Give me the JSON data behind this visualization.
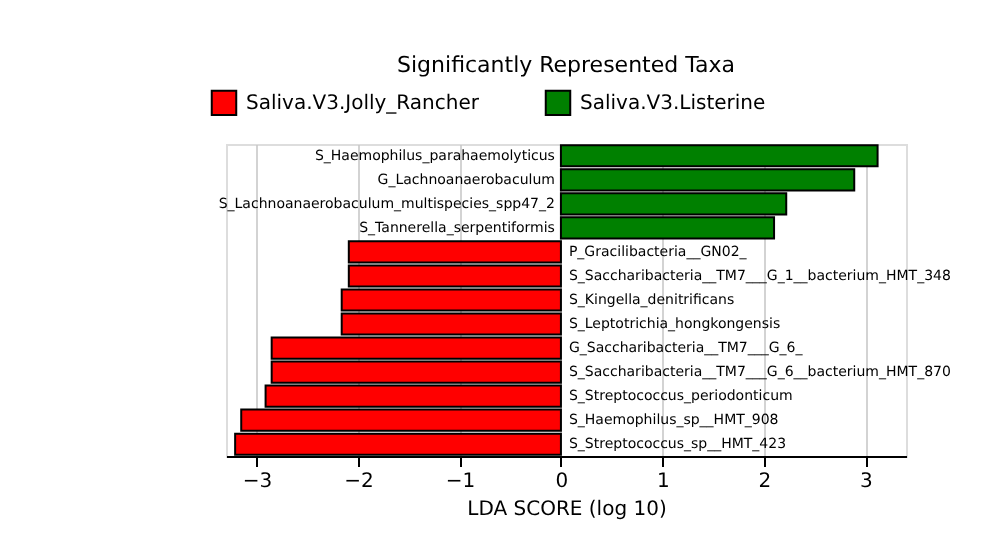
{
  "chart_data": {
    "type": "bar",
    "orientation": "horizontal",
    "title": "Significantly Represented Taxa",
    "xlabel": "LDA SCORE (log 10)",
    "categories": [
      "S_Haemophilus_parahaemolyticus",
      "G_Lachnoanaerobaculum",
      "S_Lachnoanaerobaculum_multispecies_spp47_2",
      "S_Tannerella_serpentiformis",
      "P_Gracilibacteria__GN02_",
      "S_Saccharibacteria__TM7___G_1__bacterium_HMT_348",
      "S_Kingella_denitrificans",
      "S_Leptotrichia_hongkongensis",
      "G_Saccharibacteria__TM7___G_6_",
      "S_Saccharibacteria__TM7___G_6__bacterium_HMT_870",
      "S_Streptococcus_periodonticum",
      "S_Haemophilus_sp__HMT_908",
      "S_Streptococcus_sp__HMT_423"
    ],
    "series": [
      {
        "name": "Saliva.V3.Jolly_Rancher",
        "color": "#ff0000",
        "values": [
          null,
          null,
          null,
          null,
          -2.09,
          -2.09,
          -2.16,
          -2.16,
          -2.85,
          -2.85,
          -2.91,
          -3.15,
          -3.21
        ]
      },
      {
        "name": "Saliva.V3.Listerine",
        "color": "#008000",
        "values": [
          3.12,
          2.89,
          2.22,
          2.1,
          null,
          null,
          null,
          null,
          null,
          null,
          null,
          null,
          null
        ]
      }
    ],
    "xlim": [
      -3.3,
      3.4
    ],
    "xticks": [
      -3,
      -2,
      -1,
      0,
      1,
      2,
      3
    ],
    "grid": "x",
    "legend": "top"
  }
}
